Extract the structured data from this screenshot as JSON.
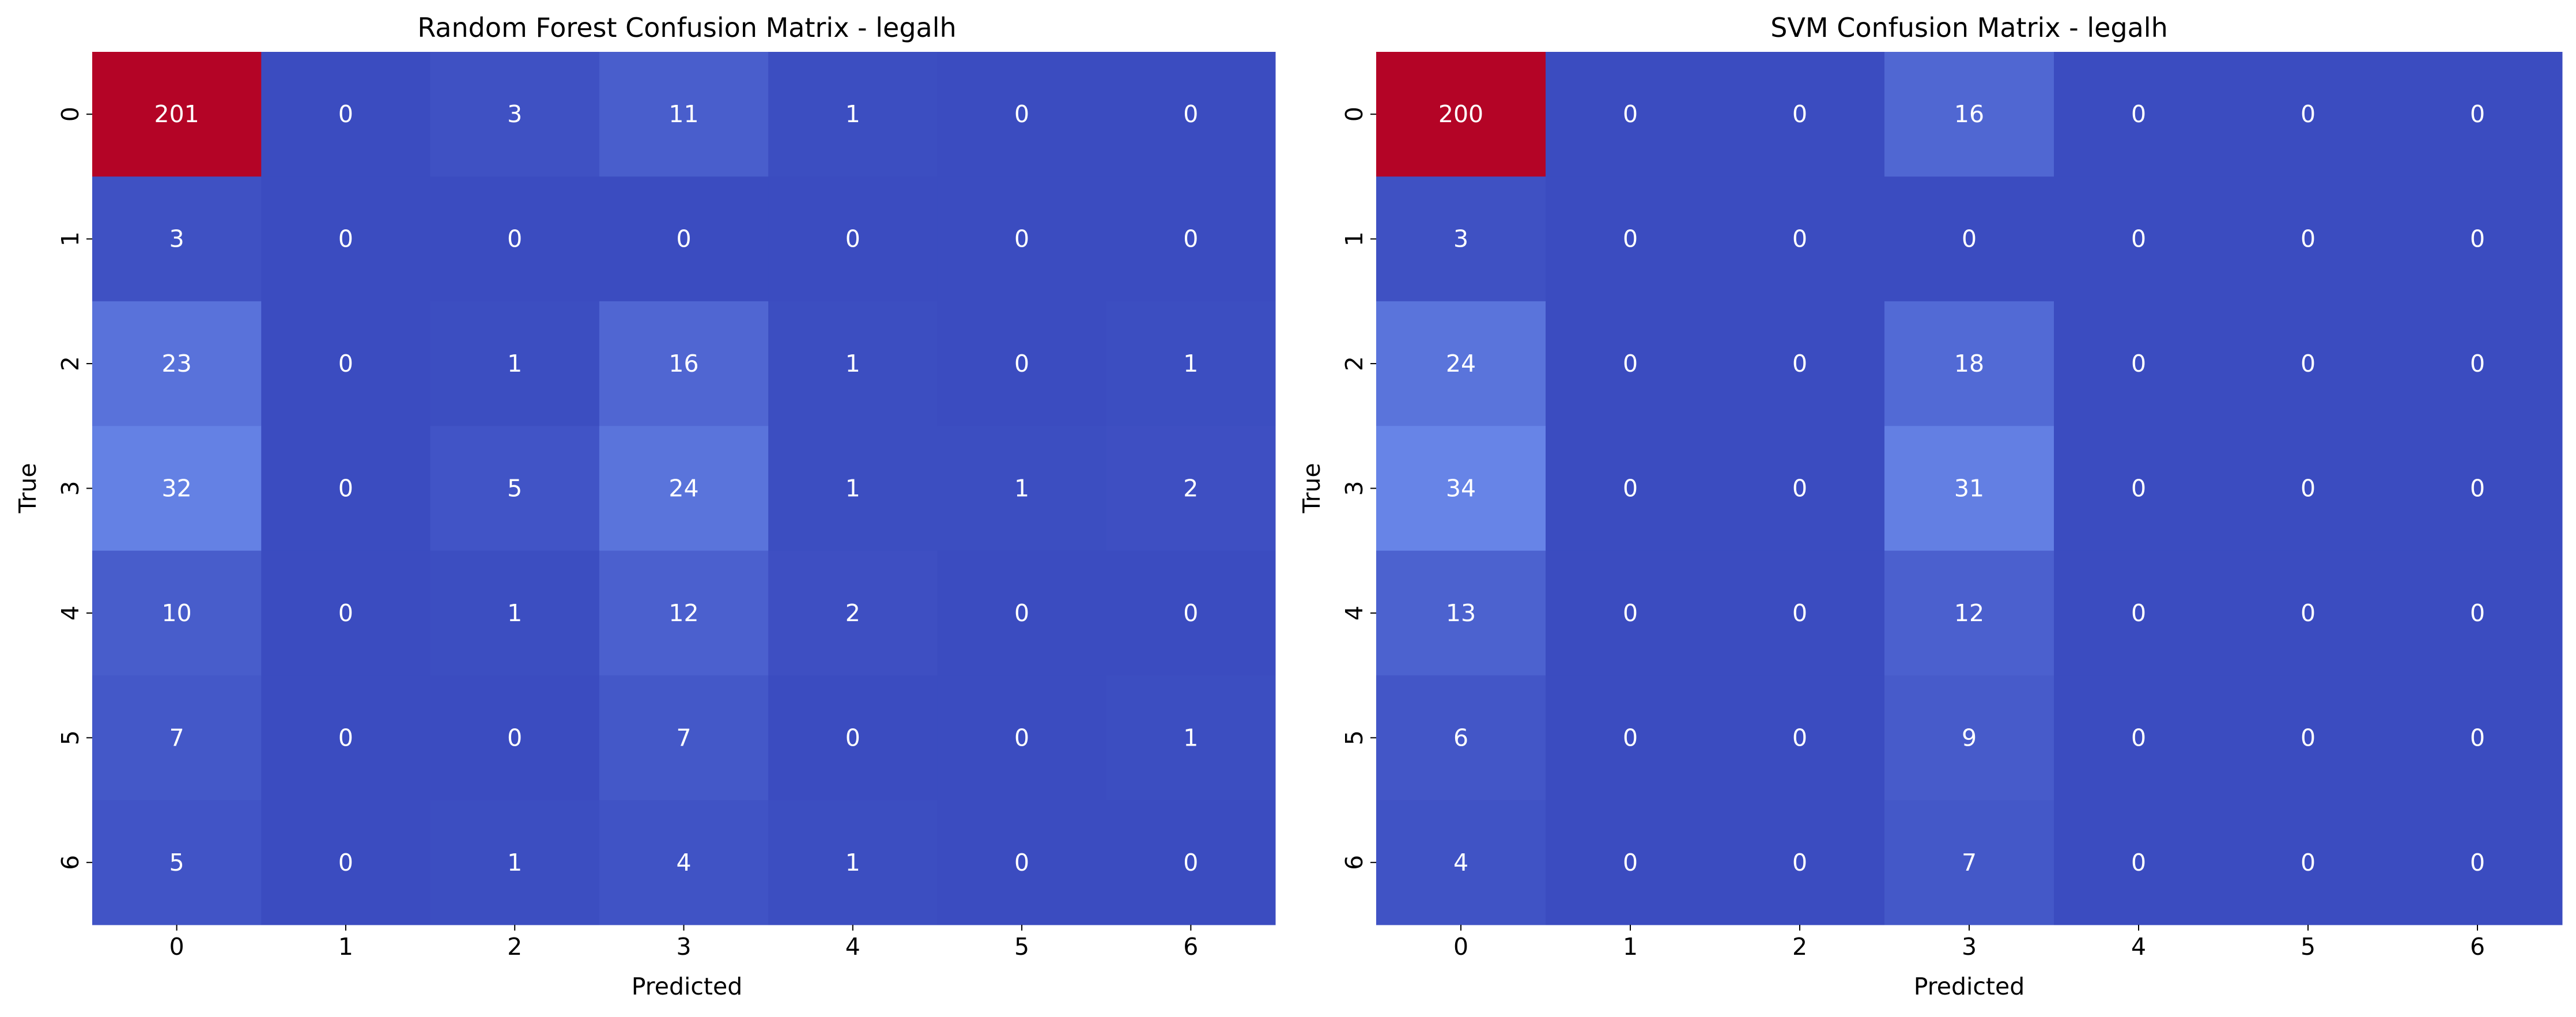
{
  "chart_data": [
    {
      "type": "heatmap",
      "title": "Random Forest Confusion Matrix - legalh",
      "xlabel": "Predicted",
      "ylabel": "True",
      "x_categories": [
        "0",
        "1",
        "2",
        "3",
        "4",
        "5",
        "6"
      ],
      "y_categories": [
        "0",
        "1",
        "2",
        "3",
        "4",
        "5",
        "6"
      ],
      "values": [
        [
          201,
          0,
          3,
          11,
          1,
          0,
          0
        ],
        [
          3,
          0,
          0,
          0,
          0,
          0,
          0
        ],
        [
          23,
          0,
          1,
          16,
          1,
          0,
          1
        ],
        [
          32,
          0,
          5,
          24,
          1,
          1,
          2
        ],
        [
          10,
          0,
          1,
          12,
          2,
          0,
          0
        ],
        [
          7,
          0,
          0,
          7,
          0,
          0,
          1
        ],
        [
          5,
          0,
          1,
          4,
          1,
          0,
          0
        ]
      ],
      "colormap": "coolwarm",
      "colorbar": false,
      "grid": false
    },
    {
      "type": "heatmap",
      "title": "SVM Confusion Matrix - legalh",
      "xlabel": "Predicted",
      "ylabel": "True",
      "x_categories": [
        "0",
        "1",
        "2",
        "3",
        "4",
        "5",
        "6"
      ],
      "y_categories": [
        "0",
        "1",
        "2",
        "3",
        "4",
        "5",
        "6"
      ],
      "values": [
        [
          200,
          0,
          0,
          16,
          0,
          0,
          0
        ],
        [
          3,
          0,
          0,
          0,
          0,
          0,
          0
        ],
        [
          24,
          0,
          0,
          18,
          0,
          0,
          0
        ],
        [
          34,
          0,
          0,
          31,
          0,
          0,
          0
        ],
        [
          13,
          0,
          0,
          12,
          0,
          0,
          0
        ],
        [
          6,
          0,
          0,
          9,
          0,
          0,
          0
        ],
        [
          4,
          0,
          0,
          7,
          0,
          0,
          0
        ]
      ],
      "colormap": "coolwarm",
      "colorbar": false,
      "grid": false
    }
  ]
}
